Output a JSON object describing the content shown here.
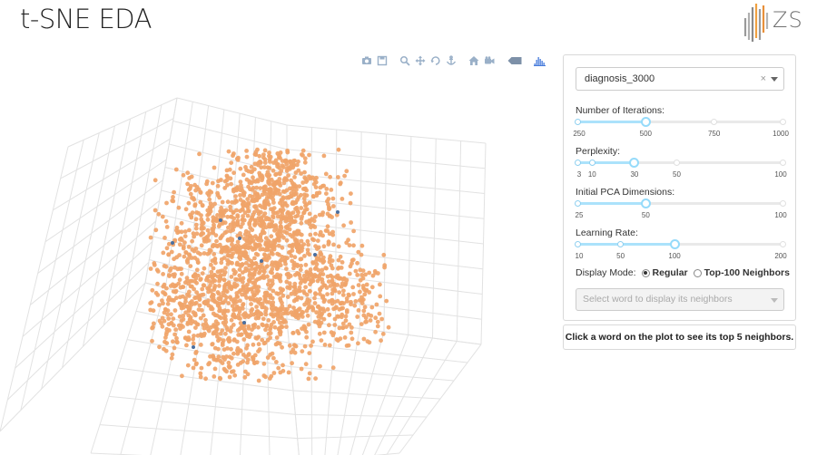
{
  "app": {
    "title": "t-SNE EDA",
    "logo_text": "ZS"
  },
  "modebar": {
    "buttons": [
      {
        "name": "camera-icon",
        "icon": "camera"
      },
      {
        "name": "save-icon",
        "icon": "save"
      },
      {
        "name": "zoom-icon",
        "icon": "zoom"
      },
      {
        "name": "pan-icon",
        "icon": "pan"
      },
      {
        "name": "orbit-rotation-icon",
        "icon": "orbit"
      },
      {
        "name": "turntable-rotation-icon",
        "icon": "turntable"
      },
      {
        "name": "home-icon",
        "icon": "home"
      },
      {
        "name": "reset-camera-icon",
        "icon": "video-camera"
      },
      {
        "name": "hover-toggle-icon",
        "icon": "tag"
      },
      {
        "name": "plotly-logo-icon",
        "icon": "plotly"
      }
    ]
  },
  "plot": {
    "marker_color": "#f0a469",
    "accent_color": "#4a6fa0",
    "grid_color": "#e2e2e2"
  },
  "controls": {
    "dataset_value": "diagnosis_3000",
    "dataset_clear": "×",
    "iterations": {
      "label": "Number of Iterations:",
      "min": 250,
      "max": 1000,
      "value": 500,
      "marks": [
        "250",
        "500",
        "750",
        "1000"
      ],
      "mark_values": [
        250,
        500,
        750,
        1000
      ]
    },
    "perplexity": {
      "label": "Perplexity:",
      "min": 3,
      "max": 100,
      "value": 30,
      "marks": [
        "3",
        "10",
        "30",
        "50",
        "100"
      ],
      "mark_values": [
        3,
        10,
        30,
        50,
        100
      ]
    },
    "pca_dims": {
      "label": "Initial PCA Dimensions:",
      "min": 25,
      "max": 100,
      "value": 50,
      "marks": [
        "25",
        "50",
        "100"
      ],
      "mark_values": [
        25,
        50,
        100
      ]
    },
    "learning_rate": {
      "label": "Learning Rate:",
      "min": 10,
      "max": 200,
      "value": 100,
      "marks": [
        "10",
        "50",
        "100",
        "200"
      ],
      "mark_values": [
        10,
        50,
        100,
        200
      ]
    },
    "display_mode": {
      "label": "Display Mode:",
      "options": [
        "Regular",
        "Top-100 Neighbors"
      ],
      "selected": "Regular"
    },
    "word_select_placeholder": "Select word to display its neighbors"
  },
  "neighbors_hint": "Click a word on the plot to see its top 5 neighbors."
}
